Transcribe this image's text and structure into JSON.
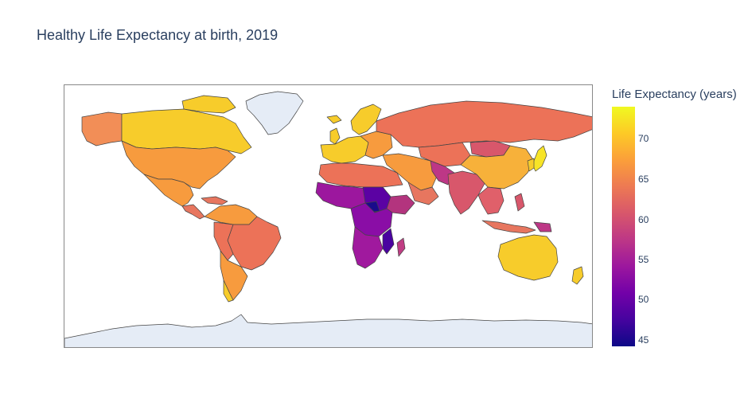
{
  "title": "Healthy Life Expectancy at birth, 2019",
  "colorbar": {
    "title": "Life Expectancy (years)",
    "ticks": [
      "70",
      "65",
      "60",
      "55",
      "50",
      "45"
    ],
    "colorscale": [
      "#0d0887",
      "#46039f",
      "#7201a8",
      "#9c179e",
      "#bd3786",
      "#d8576b",
      "#ed7953",
      "#fb9f3a",
      "#fdca26",
      "#f0f921"
    ]
  },
  "colors": {
    "land_no_data": "#e5ecf6",
    "border": "#444444",
    "frame": "#888888",
    "title": "#2a3f5f"
  }
}
